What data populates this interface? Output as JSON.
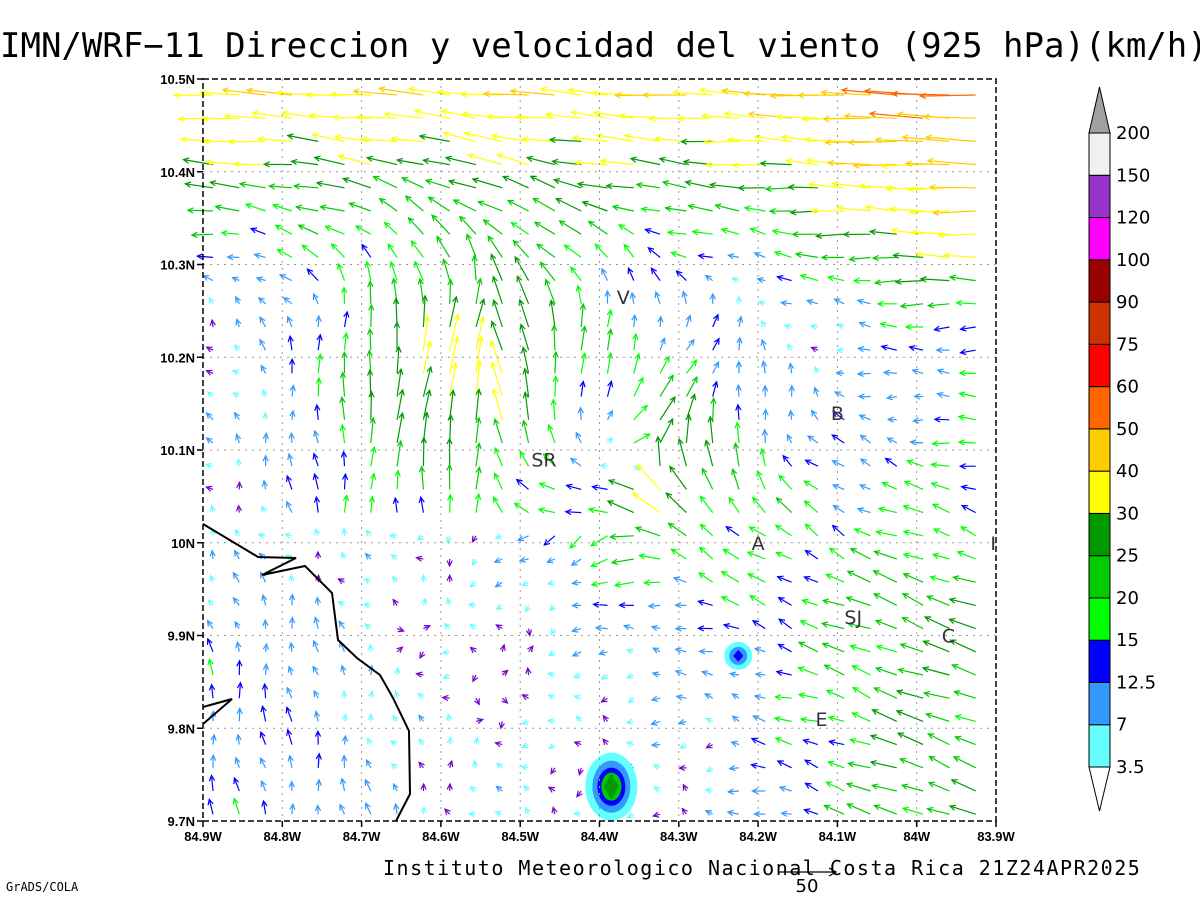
{
  "title": "IMN/WRF−11 Direccion y velocidad del viento (925 hPa)(km/h)",
  "footer": "Instituto Meteorologico Nacional Costa Rica  21Z24APR2025",
  "software": "GrADS/COLA",
  "axes": {
    "x_ticks": [
      "84.9W",
      "84.8W",
      "84.7W",
      "84.6W",
      "84.5W",
      "84.4W",
      "84.3W",
      "84.2W",
      "84.1W",
      "84W",
      "83.9W"
    ],
    "y_ticks": [
      "10.5N",
      "10.4N",
      "10.3N",
      "10.2N",
      "10.1N",
      "10N",
      "9.9N",
      "9.8N",
      "9.7N"
    ],
    "lon_range": [
      -84.9,
      -83.9
    ],
    "lat_range": [
      9.7,
      10.5
    ]
  },
  "places": [
    {
      "label": "V",
      "lon": -84.37,
      "lat": 10.265
    },
    {
      "label": "SR",
      "lon": -84.47,
      "lat": 10.09
    },
    {
      "label": "B",
      "lon": -84.1,
      "lat": 10.14
    },
    {
      "label": "A",
      "lon": -84.2,
      "lat": 10.0
    },
    {
      "label": "SJ",
      "lon": -84.08,
      "lat": 9.92
    },
    {
      "label": "C",
      "lon": -83.96,
      "lat": 9.9
    },
    {
      "label": "E",
      "lon": -84.12,
      "lat": 9.81
    },
    {
      "label": "I",
      "lon": -83.9,
      "lat": 10.0
    }
  ],
  "colorbar": {
    "levels": [
      "3.5",
      "7",
      "12.5",
      "15",
      "20",
      "25",
      "30",
      "40",
      "50",
      "60",
      "75",
      "90",
      "100",
      "120",
      "150",
      "200"
    ],
    "colors": [
      "#66ffff",
      "#3399ff",
      "#0000ff",
      "#00ff00",
      "#00cc00",
      "#009900",
      "#ffff00",
      "#ffcc00",
      "#ff6600",
      "#ff0000",
      "#cc3300",
      "#990000",
      "#ff00ff",
      "#9933cc",
      "#f0f0f0",
      "#a0a0a0"
    ]
  },
  "reference_vector": {
    "value": "50",
    "unit": "km/h"
  },
  "speed_spots": [
    {
      "lon": -84.385,
      "lat": 9.737,
      "max_kmh": 20
    },
    {
      "lon": -84.225,
      "lat": 9.878,
      "max_kmh": 12.5
    }
  ]
}
